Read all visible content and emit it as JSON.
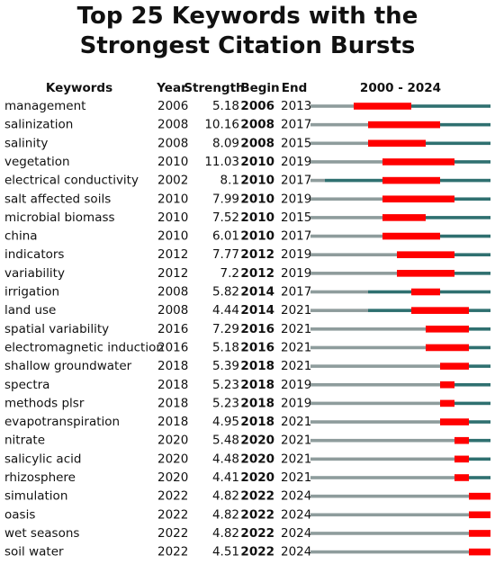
{
  "chart_data": {
    "type": "burst",
    "title": "Top 25 Keywords with the Strongest Citation Bursts",
    "headers": {
      "keyword": "Keywords",
      "year": "Year",
      "strength": "Strength",
      "begin": "Begin",
      "end": "End",
      "range": "2000 - 2024"
    },
    "xlim": [
      2000,
      2024
    ],
    "colors": {
      "before": "#8e9c9c",
      "after": "#2f7070",
      "burst": "#ff0000"
    },
    "categories": [
      "management",
      "salinization",
      "salinity",
      "vegetation",
      "electrical conductivity",
      "salt affected soils",
      "microbial biomass",
      "china",
      "indicators",
      "variability",
      "irrigation",
      "land use",
      "spatial variability",
      "electromagnetic induction",
      "shallow groundwater",
      "spectra",
      "methods plsr",
      "evapotranspiration",
      "nitrate",
      "salicylic acid",
      "rhizosphere",
      "simulation",
      "oasis",
      "wet seasons",
      "soil water"
    ],
    "year": [
      2006,
      2008,
      2008,
      2010,
      2002,
      2010,
      2010,
      2010,
      2012,
      2012,
      2008,
      2008,
      2016,
      2016,
      2018,
      2018,
      2018,
      2018,
      2020,
      2020,
      2020,
      2022,
      2022,
      2022,
      2022
    ],
    "strength": [
      5.18,
      10.16,
      8.09,
      11.03,
      8.1,
      7.99,
      7.52,
      6.01,
      7.77,
      7.2,
      5.82,
      4.44,
      7.29,
      5.18,
      5.39,
      5.23,
      5.23,
      4.95,
      5.48,
      4.48,
      4.41,
      4.82,
      4.82,
      4.82,
      4.51
    ],
    "begin": [
      2006,
      2008,
      2008,
      2010,
      2010,
      2010,
      2010,
      2010,
      2012,
      2012,
      2014,
      2014,
      2016,
      2016,
      2018,
      2018,
      2018,
      2018,
      2020,
      2020,
      2020,
      2022,
      2022,
      2022,
      2022
    ],
    "end": [
      2013,
      2017,
      2015,
      2019,
      2017,
      2019,
      2015,
      2017,
      2019,
      2019,
      2017,
      2021,
      2021,
      2021,
      2021,
      2019,
      2019,
      2021,
      2021,
      2021,
      2021,
      2024,
      2024,
      2024,
      2024
    ]
  }
}
